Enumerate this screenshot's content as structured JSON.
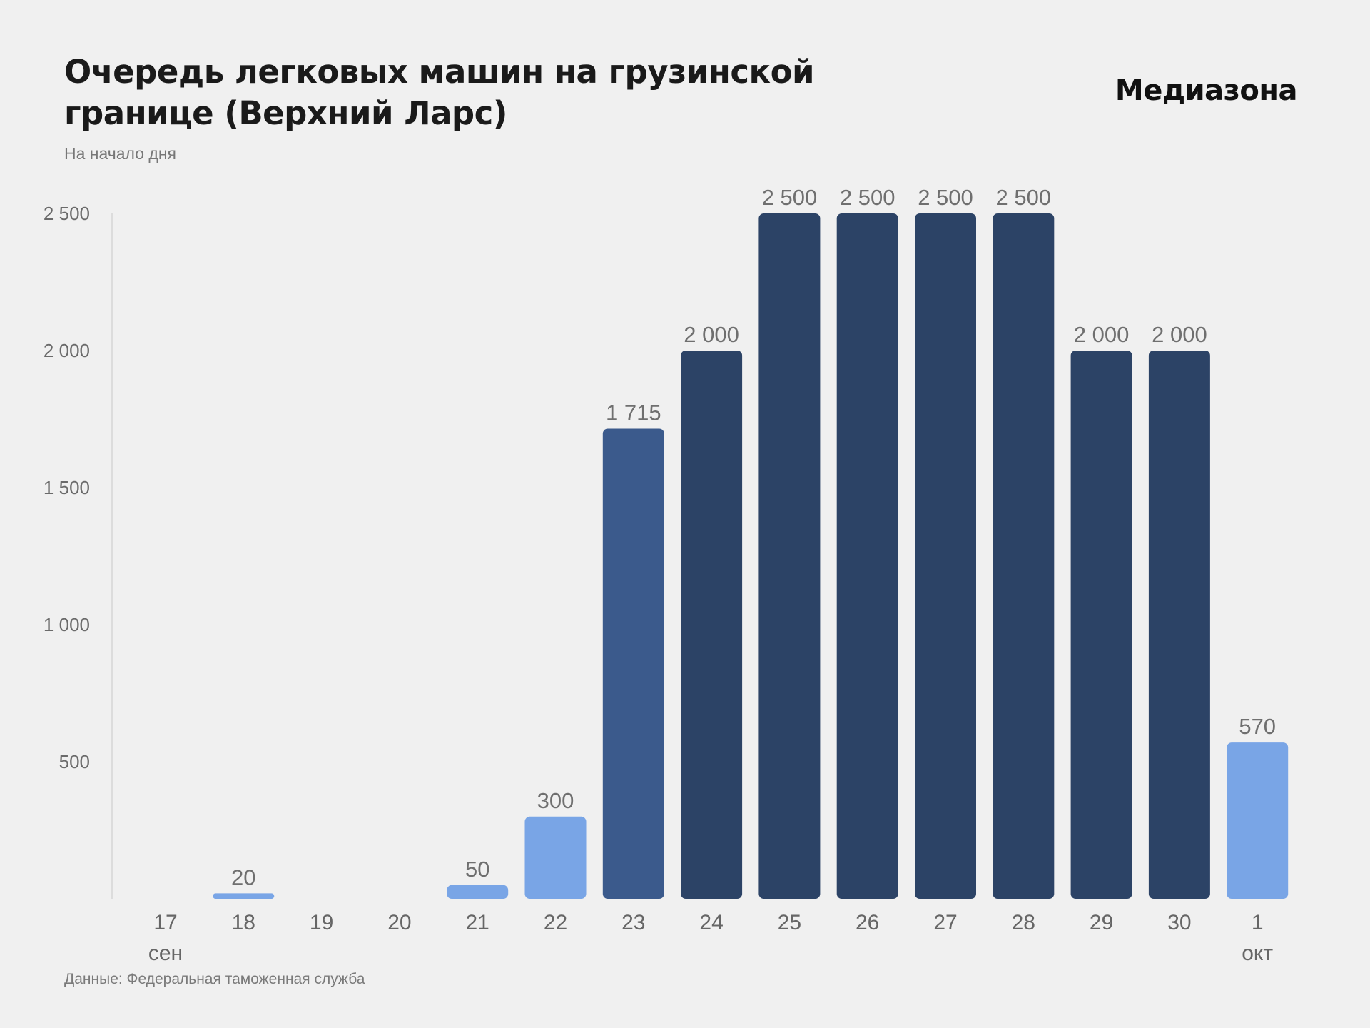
{
  "header": {
    "title": "Очередь легковых машин на грузинской границе (Верхний Ларс)",
    "subtitle": "На начало дня",
    "brand": "Медиазона"
  },
  "footer": {
    "source": "Данные: Федеральная таможенная служба"
  },
  "colors": {
    "background": "#f0f0f0",
    "light_blue": "#79a5e6",
    "mid_blue": "#3b5a8c",
    "dark_blue": "#2c4366",
    "axis_line": "#dcdcdc"
  },
  "chart_data": {
    "type": "bar",
    "categories": [
      "17",
      "18",
      "19",
      "20",
      "21",
      "22",
      "23",
      "24",
      "25",
      "26",
      "27",
      "28",
      "29",
      "30",
      "1"
    ],
    "category_sublabels": [
      "сен",
      "",
      "",
      "",
      "",
      "",
      "",
      "",
      "",
      "",
      "",
      "",
      "",
      "",
      "окт"
    ],
    "values": [
      0,
      20,
      0,
      0,
      50,
      300,
      1715,
      2000,
      2500,
      2500,
      2500,
      2500,
      2000,
      2000,
      570
    ],
    "value_labels": [
      "",
      "20",
      "",
      "",
      "50",
      "300",
      "1 715",
      "2 000",
      "2 500",
      "2 500",
      "2 500",
      "2 500",
      "2 000",
      "2 000",
      "570"
    ],
    "bar_colors": [
      "#79a5e6",
      "#79a5e6",
      "#79a5e6",
      "#79a5e6",
      "#79a5e6",
      "#79a5e6",
      "#3b5a8c",
      "#2c4366",
      "#2c4366",
      "#2c4366",
      "#2c4366",
      "#2c4366",
      "#2c4366",
      "#2c4366",
      "#79a5e6"
    ],
    "yticks": [
      500,
      1000,
      1500,
      2000,
      2500
    ],
    "ytick_labels": [
      "500",
      "1 000",
      "1 500",
      "2 000",
      "2 500"
    ],
    "ylim": [
      0,
      2500
    ],
    "title": "Очередь легковых машин на грузинской границе (Верхний Ларс)",
    "subtitle": "На начало дня",
    "xlabel": "",
    "ylabel": "",
    "grid": false
  }
}
